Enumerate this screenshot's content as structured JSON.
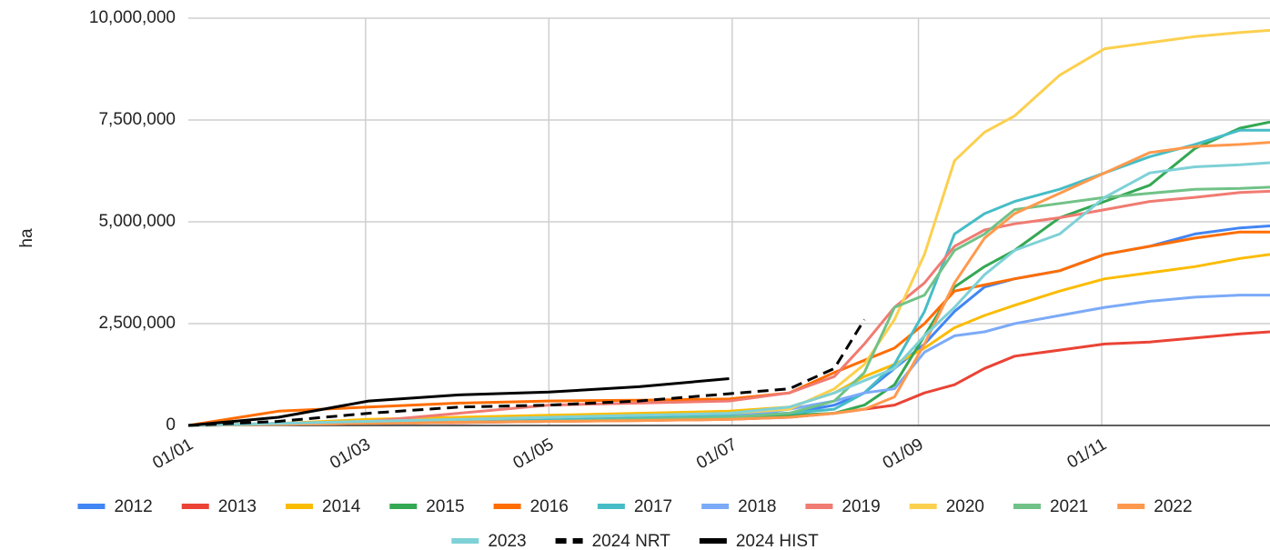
{
  "chart_data": {
    "type": "line",
    "y_label": "ha",
    "x": [
      0,
      30,
      60,
      90,
      120,
      150,
      180,
      200,
      215,
      225,
      235,
      245,
      255,
      265,
      275,
      290,
      305,
      320,
      335,
      350,
      360
    ],
    "xlim": [
      0,
      360
    ],
    "xticks": [
      {
        "value": 0,
        "label": "01/01"
      },
      {
        "value": 59,
        "label": "01/03"
      },
      {
        "value": 120,
        "label": "01/05"
      },
      {
        "value": 181,
        "label": "01/07"
      },
      {
        "value": 243,
        "label": "01/09"
      },
      {
        "value": 304,
        "label": "01/11"
      }
    ],
    "ylim": [
      0,
      10000000
    ],
    "yticks": [
      0,
      {
        "value": 2500000,
        "label": "2,500,000"
      },
      {
        "value": 5000000,
        "label": "5,000,000"
      },
      {
        "value": 7500000,
        "label": "7,500,000"
      },
      {
        "value": 10000000,
        "label": "10,000,000"
      }
    ],
    "grid": true,
    "legend": "bottom",
    "series": [
      {
        "name": "2012",
        "color": "#4285f4",
        "values": [
          0,
          50000,
          100000,
          120000,
          150000,
          200000,
          250000,
          300000,
          500000,
          800000,
          1400000,
          2000000,
          2800000,
          3400000,
          3600000,
          3800000,
          4200000,
          4400000,
          4700000,
          4850000,
          4900000
        ]
      },
      {
        "name": "2013",
        "color": "#ea4335",
        "values": [
          0,
          30000,
          50000,
          70000,
          100000,
          120000,
          150000,
          200000,
          300000,
          400000,
          500000,
          800000,
          1000000,
          1400000,
          1700000,
          1850000,
          2000000,
          2050000,
          2150000,
          2250000,
          2300000
        ]
      },
      {
        "name": "2014",
        "color": "#fbbc04",
        "values": [
          0,
          50000,
          150000,
          200000,
          250000,
          300000,
          350000,
          450000,
          800000,
          1200000,
          1500000,
          1900000,
          2400000,
          2700000,
          2950000,
          3300000,
          3600000,
          3750000,
          3900000,
          4100000,
          4200000
        ]
      },
      {
        "name": "2015",
        "color": "#34a853",
        "values": [
          0,
          30000,
          70000,
          100000,
          120000,
          150000,
          200000,
          250000,
          300000,
          500000,
          1000000,
          2200000,
          3400000,
          3900000,
          4300000,
          5100000,
          5500000,
          5900000,
          6800000,
          7300000,
          7450000
        ]
      },
      {
        "name": "2016",
        "color": "#ff6d01",
        "values": [
          0,
          350000,
          450000,
          550000,
          600000,
          620000,
          650000,
          800000,
          1300000,
          1600000,
          1900000,
          2500000,
          3300000,
          3450000,
          3600000,
          3800000,
          4200000,
          4400000,
          4600000,
          4750000,
          4750000
        ]
      },
      {
        "name": "2017",
        "color": "#46bdc6",
        "values": [
          0,
          50000,
          100000,
          120000,
          150000,
          200000,
          250000,
          300000,
          400000,
          800000,
          1500000,
          2800000,
          4700000,
          5200000,
          5500000,
          5800000,
          6200000,
          6600000,
          6900000,
          7250000,
          7250000
        ]
      },
      {
        "name": "2018",
        "color": "#7baaf7",
        "values": [
          0,
          30000,
          50000,
          80000,
          100000,
          150000,
          200000,
          400000,
          600000,
          800000,
          900000,
          1800000,
          2200000,
          2300000,
          2500000,
          2700000,
          2900000,
          3050000,
          3150000,
          3200000,
          3200000
        ]
      },
      {
        "name": "2019",
        "color": "#f07b72",
        "values": [
          0,
          50000,
          100000,
          300000,
          500000,
          550000,
          600000,
          800000,
          1200000,
          2000000,
          2900000,
          3500000,
          4400000,
          4800000,
          4950000,
          5100000,
          5300000,
          5500000,
          5600000,
          5720000,
          5750000
        ]
      },
      {
        "name": "2020",
        "color": "#fcd04f",
        "values": [
          0,
          50000,
          100000,
          150000,
          200000,
          250000,
          300000,
          400000,
          900000,
          1500000,
          2600000,
          4200000,
          6500000,
          7200000,
          7600000,
          8600000,
          9250000,
          9400000,
          9550000,
          9650000,
          9700000
        ]
      },
      {
        "name": "2021",
        "color": "#71c287",
        "values": [
          0,
          30000,
          50000,
          80000,
          100000,
          150000,
          200000,
          300000,
          600000,
          1300000,
          2900000,
          3200000,
          4300000,
          4700000,
          5300000,
          5450000,
          5600000,
          5700000,
          5800000,
          5820000,
          5850000
        ]
      },
      {
        "name": "2022",
        "color": "#ff994d",
        "values": [
          0,
          30000,
          50000,
          80000,
          100000,
          120000,
          150000,
          200000,
          300000,
          400000,
          700000,
          2000000,
          3500000,
          4600000,
          5200000,
          5700000,
          6200000,
          6700000,
          6850000,
          6900000,
          6950000
        ]
      },
      {
        "name": "2023",
        "color": "#7ed1d7",
        "values": [
          0,
          50000,
          100000,
          150000,
          200000,
          250000,
          300000,
          450000,
          800000,
          1100000,
          1400000,
          2200000,
          2900000,
          3700000,
          4300000,
          4700000,
          5600000,
          6200000,
          6350000,
          6400000,
          6450000
        ]
      },
      {
        "name": "2024 NRT",
        "color": "#000000",
        "dash": true,
        "values": [
          0,
          100000,
          300000,
          450000,
          500000,
          600000,
          780000,
          900000,
          1400000,
          2600000,
          null,
          null,
          null,
          null,
          null,
          null,
          null,
          null,
          null,
          null,
          null
        ]
      },
      {
        "name": "2024 HIST",
        "color": "#000000",
        "values": [
          0,
          200000,
          600000,
          750000,
          820000,
          950000,
          1150000,
          null,
          null,
          null,
          null,
          null,
          null,
          null,
          null,
          null,
          null,
          null,
          null,
          null,
          null
        ]
      }
    ]
  }
}
